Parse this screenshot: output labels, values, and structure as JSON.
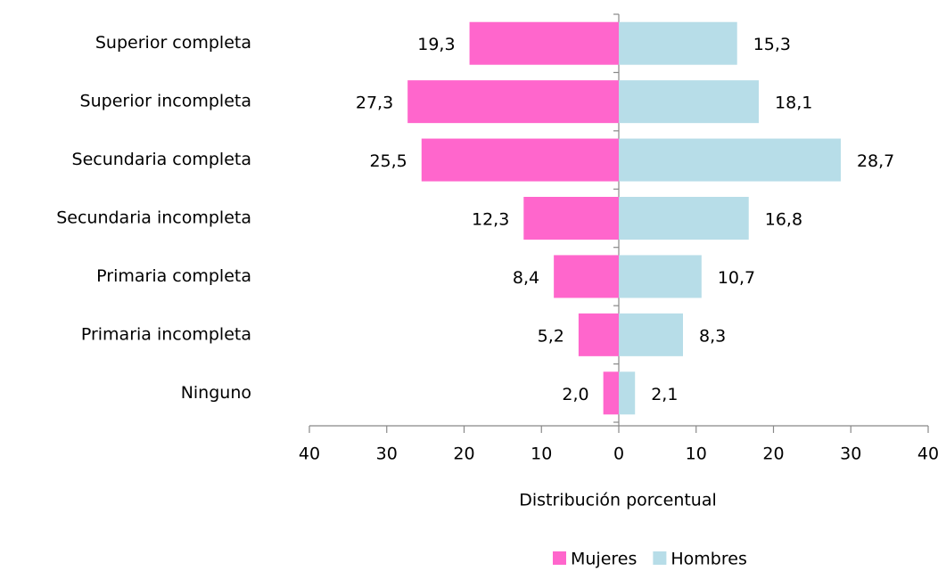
{
  "chart_data": {
    "type": "butterfly-bar",
    "categories": [
      "Superior completa",
      "Superior incompleta",
      "Secundaria completa",
      "Secundaria incompleta",
      "Primaria completa",
      "Primaria incompleta",
      "Ninguno"
    ],
    "series": [
      {
        "name": "Mujeres",
        "color": "#ff66cc",
        "values": [
          -19.3,
          -27.3,
          -25.5,
          -12.3,
          -8.4,
          -5.2,
          -2.0
        ],
        "value_labels": [
          "19,3",
          "27,3",
          "25,5",
          "12,3",
          "8,4",
          "5,2",
          "2,0"
        ]
      },
      {
        "name": "Hombres",
        "color": "#b7dde8",
        "values": [
          15.3,
          18.1,
          28.7,
          16.8,
          10.7,
          8.3,
          2.1
        ],
        "value_labels": [
          "15,3",
          "18,1",
          "28,7",
          "16,8",
          "10,7",
          "8,3",
          "2,1"
        ]
      }
    ],
    "xlabel": "Distribución porcentual",
    "xlim": [
      -40,
      40
    ],
    "xticks": [
      {
        "value": -40,
        "label": "40"
      },
      {
        "value": -30,
        "label": "30"
      },
      {
        "value": -20,
        "label": "20"
      },
      {
        "value": -10,
        "label": "10"
      },
      0,
      10,
      20,
      30,
      40
    ],
    "legend": "bottom"
  }
}
